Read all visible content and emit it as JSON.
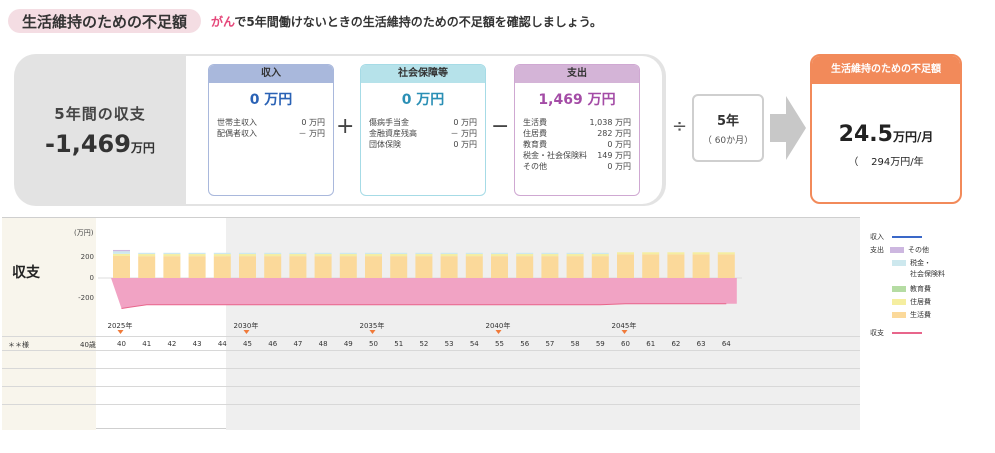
{
  "header": {
    "title": "生活維持のための不足額",
    "desc_keyword": "がん",
    "desc_rest": "で5年間働けないときの生活維持のための不足額を確認しましょう。"
  },
  "summary": {
    "title": "5年間の収支",
    "amount": "-1,469",
    "unit": "万円",
    "op_plus": "+",
    "op_minus": "−",
    "op_divide": "÷"
  },
  "cards": {
    "income": {
      "title": "収入",
      "amount": "0 万円",
      "rows": [
        {
          "label": "世帯主収入",
          "value": "0 万円"
        },
        {
          "label": "配偶者収入",
          "value": "－ 万円"
        }
      ]
    },
    "social": {
      "title": "社会保障等",
      "amount": "0 万円",
      "rows": [
        {
          "label": "傷病手当金",
          "value": "0 万円"
        },
        {
          "label": "金融資産残高",
          "value": "－ 万円"
        },
        {
          "label": "団体保険",
          "value": "0 万円"
        }
      ]
    },
    "expense": {
      "title": "支出",
      "amount": "1,469 万円",
      "rows": [
        {
          "label": "生活費",
          "value": "1,038 万円"
        },
        {
          "label": "住居費",
          "value": "282 万円"
        },
        {
          "label": "教育費",
          "value": "0 万円"
        },
        {
          "label": "税金・社会保険料",
          "value": "149 万円"
        },
        {
          "label": "その他",
          "value": "0 万円"
        }
      ]
    }
  },
  "period": {
    "years": "5年",
    "months": "（ 60か月）"
  },
  "result": {
    "title": "生活維持のための不足額",
    "monthly": "24.5",
    "monthly_unit": "万円/月",
    "yearly": "294万円/年",
    "yearly_prefix": "（"
  },
  "chart": {
    "section_label": "収支",
    "y_unit": "(万円)",
    "y_ticks": [
      "200",
      "0",
      "-200"
    ],
    "row_label": "＊＊様",
    "start_age": "40歳",
    "colors": {
      "living": "#fbd99a",
      "housing": "#f5eea0",
      "tax": "#cde8ee",
      "other": "#cdb7e0",
      "education": "#b5dca3",
      "income": "#3a68c8",
      "balance": "#e8658b",
      "balance_fill": "#f1a3c4"
    }
  },
  "chart_data": {
    "type": "bar",
    "y_unit": "(万円)",
    "ylim": [
      -300,
      300
    ],
    "x_year_labels": [
      "2025年",
      "2030年",
      "2035年",
      "2040年",
      "2045年"
    ],
    "ages": [
      "40",
      "41",
      "42",
      "43",
      "44",
      "45",
      "46",
      "47",
      "48",
      "49",
      "50",
      "51",
      "52",
      "53",
      "54",
      "55",
      "56",
      "57",
      "58",
      "59",
      "60",
      "61",
      "62",
      "63",
      "64"
    ],
    "series": [
      {
        "name": "生活費",
        "values": [
          210,
          208,
          208,
          208,
          208,
          208,
          208,
          208,
          208,
          208,
          208,
          208,
          208,
          208,
          208,
          208,
          208,
          208,
          208,
          208,
          225,
          225,
          225,
          225,
          225
        ]
      },
      {
        "name": "住居費",
        "values": [
          20,
          20,
          20,
          20,
          20,
          20,
          20,
          20,
          20,
          20,
          20,
          20,
          20,
          20,
          20,
          20,
          20,
          20,
          20,
          20,
          20,
          20,
          20,
          20,
          20
        ]
      },
      {
        "name": "税金・社会保険料",
        "values": [
          25,
          12,
          12,
          12,
          12,
          12,
          12,
          12,
          12,
          12,
          12,
          12,
          12,
          12,
          12,
          12,
          12,
          12,
          12,
          12,
          0,
          0,
          0,
          0,
          0
        ]
      },
      {
        "name": "その他",
        "values": [
          12,
          0,
          0,
          0,
          0,
          0,
          0,
          0,
          0,
          0,
          0,
          0,
          0,
          0,
          0,
          0,
          0,
          0,
          0,
          0,
          0,
          0,
          0,
          0,
          0
        ]
      },
      {
        "name": "収支",
        "values": [
          -290,
          -255,
          -255,
          -255,
          -255,
          -255,
          -255,
          -255,
          -255,
          -255,
          -255,
          -255,
          -255,
          -255,
          -255,
          -255,
          -255,
          -255,
          -255,
          -255,
          -245,
          -245,
          -245,
          -245,
          -245
        ]
      }
    ],
    "legend_position": "right"
  },
  "legend": {
    "income": "収入",
    "expense": "支出",
    "other": "その他",
    "tax1": "税金・",
    "tax2": "社会保険料",
    "education": "教育費",
    "housing": "住居費",
    "living": "生活費",
    "balance": "収支"
  }
}
